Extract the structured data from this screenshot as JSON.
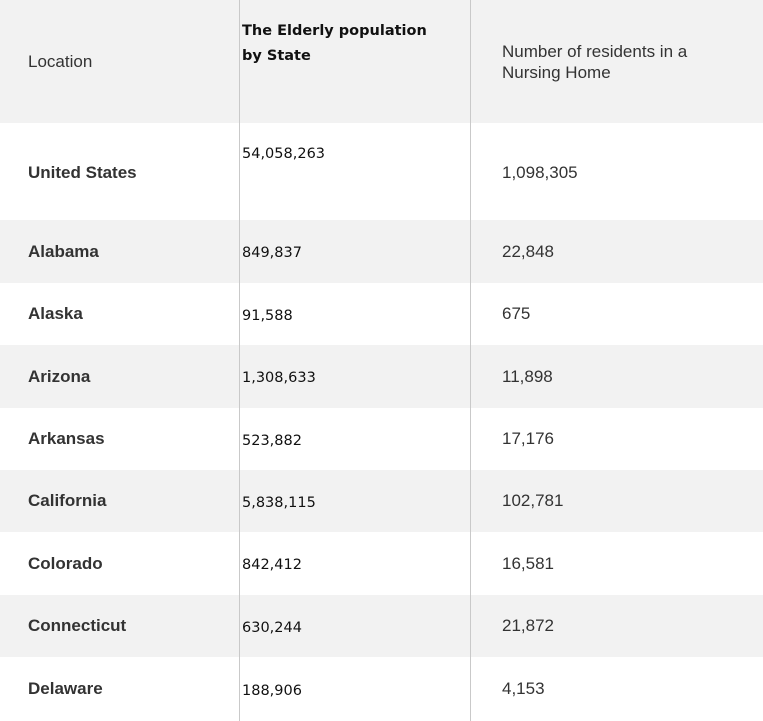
{
  "headers": {
    "location": "Location",
    "elderly": "The Elderly population by State",
    "residents": "Number of residents in a Nursing Home"
  },
  "rows": [
    {
      "location": "United States",
      "elderly": "54,058,263",
      "residents": "1,098,305"
    },
    {
      "location": "Alabama",
      "elderly": "849,837",
      "residents": "22,848"
    },
    {
      "location": "Alaska",
      "elderly": "91,588",
      "residents": "675"
    },
    {
      "location": "Arizona",
      "elderly": "1,308,633",
      "residents": "11,898"
    },
    {
      "location": "Arkansas",
      "elderly": "523,882",
      "residents": "17,176"
    },
    {
      "location": "California",
      "elderly": "5,838,115",
      "residents": "102,781"
    },
    {
      "location": "Colorado",
      "elderly": "842,412",
      "residents": "16,581"
    },
    {
      "location": "Connecticut",
      "elderly": "630,244",
      "residents": "21,872"
    },
    {
      "location": "Delaware",
      "elderly": "188,906",
      "residents": "4,153"
    }
  ]
}
